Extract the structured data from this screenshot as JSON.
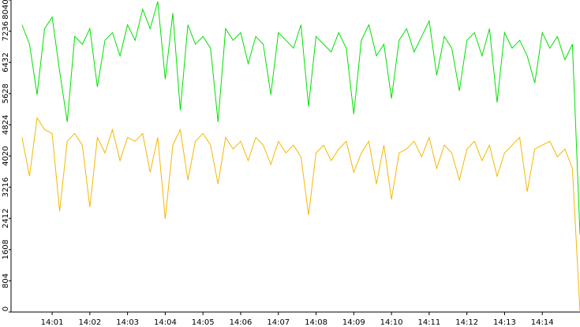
{
  "chart_data": {
    "type": "line",
    "x": [
      0.2,
      0.4,
      0.6,
      0.8,
      1,
      1.2,
      1.4,
      1.6,
      1.8,
      2,
      2.2,
      2.4,
      2.6,
      2.8,
      3,
      3.2,
      3.4,
      3.6,
      3.8,
      4,
      4.2,
      4.4,
      4.6,
      4.8,
      5,
      5.2,
      5.4,
      5.6,
      5.8,
      6,
      6.2,
      6.4,
      6.6,
      6.8,
      7,
      7.2,
      7.4,
      7.6,
      7.8,
      8,
      8.2,
      8.4,
      8.6,
      8.8,
      9,
      9.2,
      9.4,
      9.6,
      9.8,
      10,
      10.2,
      10.4,
      10.6,
      10.8,
      11,
      11.2,
      11.4,
      11.6,
      11.8,
      12,
      12.2,
      12.4,
      12.6,
      12.8,
      13,
      13.2,
      13.4,
      13.6,
      13.8,
      14,
      14.2,
      14.4,
      14.6,
      14.8,
      15
    ],
    "series": [
      {
        "color": "#00e000",
        "values": [
          7400,
          6900,
          5600,
          7300,
          7600,
          6200,
          4900,
          7100,
          6900,
          7300,
          5800,
          7000,
          7200,
          6600,
          7400,
          7000,
          7800,
          7300,
          8000,
          6000,
          7700,
          5200,
          7400,
          6900,
          7100,
          6800,
          4900,
          7300,
          7000,
          7200,
          6400,
          7100,
          6900,
          5600,
          7200,
          7000,
          6800,
          7400,
          5300,
          7100,
          6900,
          6700,
          7200,
          6800,
          5100,
          7000,
          7400,
          6600,
          6900,
          5500,
          7000,
          7300,
          6700,
          7100,
          7500,
          6100,
          7100,
          6800,
          5700,
          7000,
          7200,
          6600,
          7300,
          5400,
          7200,
          6800,
          7000,
          6600,
          5900,
          7200,
          6800,
          7100,
          6500,
          6900,
          2000
        ]
      },
      {
        "color": "#f5b800",
        "values": [
          4500,
          3500,
          5000,
          4700,
          4600,
          2600,
          4400,
          4600,
          4300,
          2700,
          4500,
          4100,
          4700,
          3900,
          4500,
          4400,
          4600,
          3600,
          4500,
          2400,
          4300,
          4700,
          3400,
          4400,
          4600,
          4300,
          3300,
          4500,
          4200,
          4400,
          3900,
          4500,
          4300,
          3800,
          4400,
          4100,
          4300,
          4000,
          2500,
          4100,
          4300,
          3900,
          4200,
          4400,
          3600,
          4100,
          4400,
          3300,
          4300,
          2900,
          4100,
          4200,
          4400,
          4000,
          4500,
          3700,
          4300,
          4100,
          3400,
          4200,
          4400,
          3900,
          4300,
          3500,
          4100,
          4300,
          4500,
          3100,
          4200,
          4300,
          4400,
          4000,
          4200,
          3700,
          0
        ]
      }
    ],
    "xlim": [
      -0.09,
      15.0
    ],
    "xticks": [
      {
        "value": 1,
        "label": "14:01"
      },
      {
        "value": 2,
        "label": "14:02"
      },
      {
        "value": 3,
        "label": "14:03"
      },
      {
        "value": 4,
        "label": "14:04"
      },
      {
        "value": 5,
        "label": "14:05"
      },
      {
        "value": 6,
        "label": "14:06"
      },
      {
        "value": 7,
        "label": "14:07"
      },
      {
        "value": 8,
        "label": "14:08"
      },
      {
        "value": 9,
        "label": "14:09"
      },
      {
        "value": 10,
        "label": "14:10"
      },
      {
        "value": 11,
        "label": "14:11"
      },
      {
        "value": 12,
        "label": "14:12"
      },
      {
        "value": 13,
        "label": "14:13"
      },
      {
        "value": 14,
        "label": "14:14"
      }
    ],
    "ylim": [
      0,
      8040
    ],
    "yticks": [
      0,
      804,
      1608,
      2412,
      3216,
      4020,
      4824,
      5628,
      6432,
      7236,
      8040
    ],
    "grid": false
  }
}
